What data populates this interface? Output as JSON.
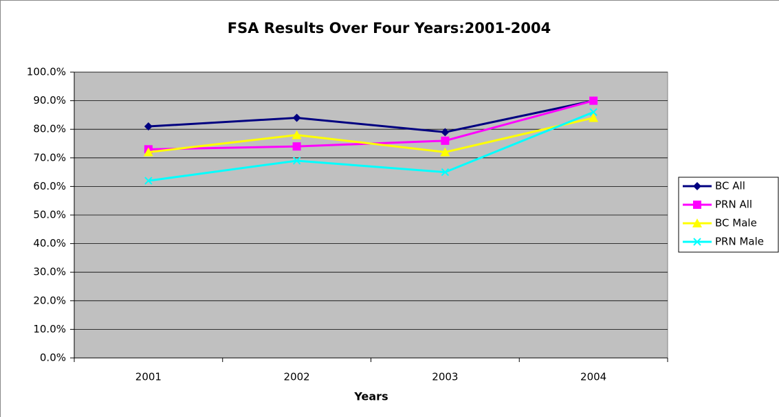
{
  "chart_data": {
    "type": "line",
    "title": "FSA Results Over Four Years:2001-2004",
    "x_label": "Years",
    "categories": [
      "2001",
      "2002",
      "2003",
      "2004"
    ],
    "series": [
      {
        "name": "BC All",
        "color": "#000080",
        "marker": "diamond",
        "values": [
          81,
          84,
          79,
          90
        ]
      },
      {
        "name": "PRN All",
        "color": "#ff00ff",
        "marker": "square",
        "values": [
          73,
          74,
          76,
          90
        ]
      },
      {
        "name": "BC Male",
        "color": "#ffff00",
        "marker": "triangle",
        "values": [
          72,
          78,
          72,
          84
        ]
      },
      {
        "name": "PRN Male",
        "color": "#00ffff",
        "marker": "x",
        "values": [
          62,
          69,
          65,
          86
        ]
      }
    ],
    "ylim": [
      0,
      100
    ],
    "yticks": [
      {
        "value": 0,
        "label": "0.0%"
      },
      {
        "value": 10,
        "label": "10.0%"
      },
      {
        "value": 20,
        "label": "20.0%"
      },
      {
        "value": 30,
        "label": "30.0%"
      },
      {
        "value": 40,
        "label": "40.0%"
      },
      {
        "value": 50,
        "label": "50.0%"
      },
      {
        "value": 60,
        "label": "60.0%"
      },
      {
        "value": 70,
        "label": "70.0%"
      },
      {
        "value": 80,
        "label": "80.0%"
      },
      {
        "value": 90,
        "label": "90.0%"
      },
      {
        "value": 100,
        "label": "100.0%"
      }
    ],
    "grid": true,
    "legend": "right"
  }
}
